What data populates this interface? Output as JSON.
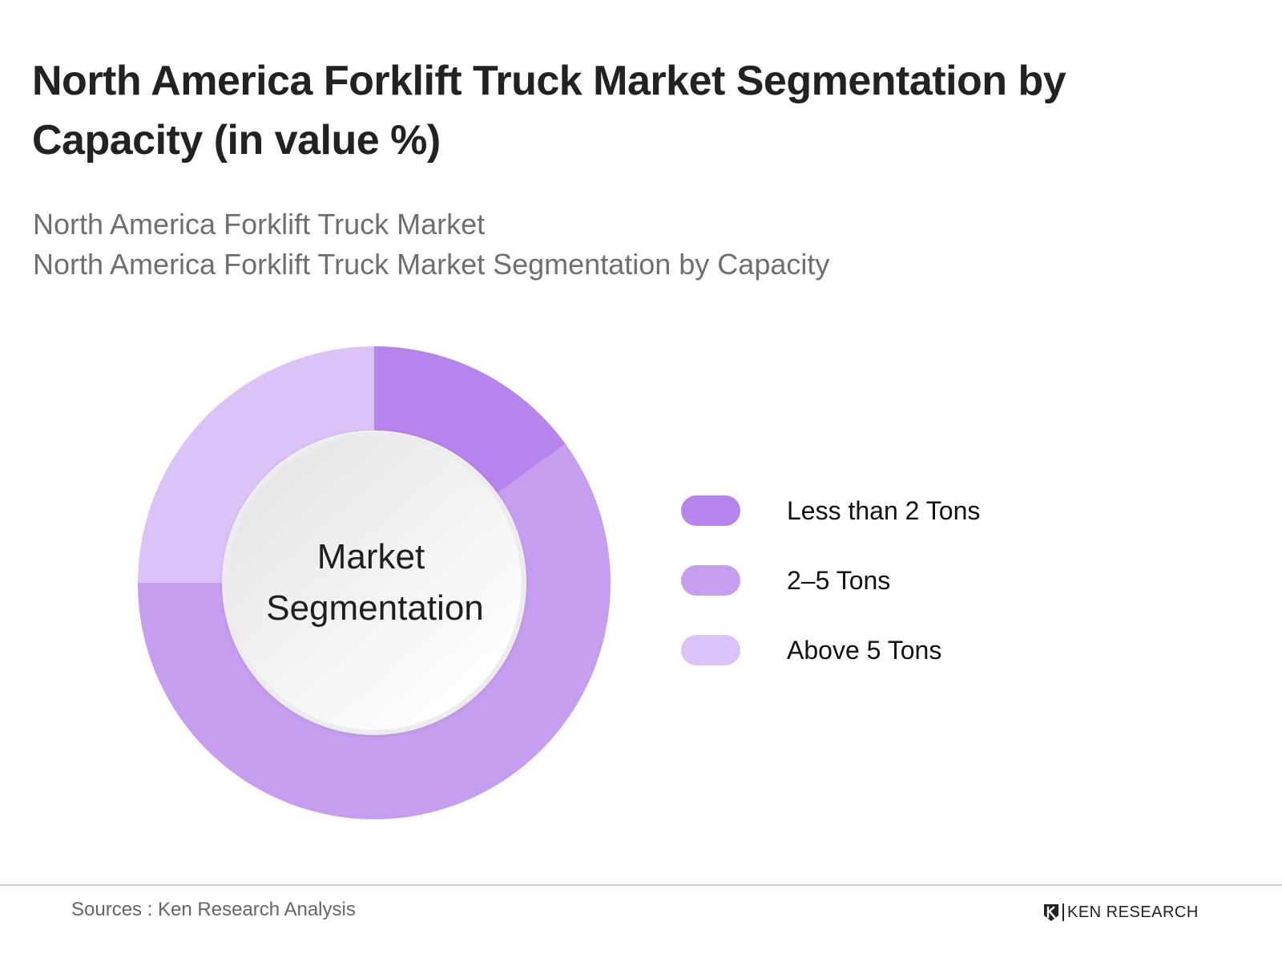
{
  "title": "North America Forklift Truck Market Segmentation by Capacity (in value %)",
  "subtitles": [
    "North America Forklift Truck Market",
    "North America Forklift Truck Market Segmentation by Capacity"
  ],
  "center_label": {
    "line1": "Market",
    "line2": "Segmentation"
  },
  "chart_data": {
    "type": "pie",
    "style": "donut",
    "categories": [
      "Less than 2 Tons",
      "2–5 Tons",
      "Above 5 Tons"
    ],
    "values": [
      15,
      60,
      25
    ],
    "colors": [
      "#b584ec",
      "#c69ef0",
      "#dcc3f7"
    ],
    "legend_position": "right",
    "start_angle": "12 o'clock, clockwise"
  },
  "footer": {
    "source": "Sources : Ken Research Analysis",
    "brand": "KEN RESEARCH"
  }
}
